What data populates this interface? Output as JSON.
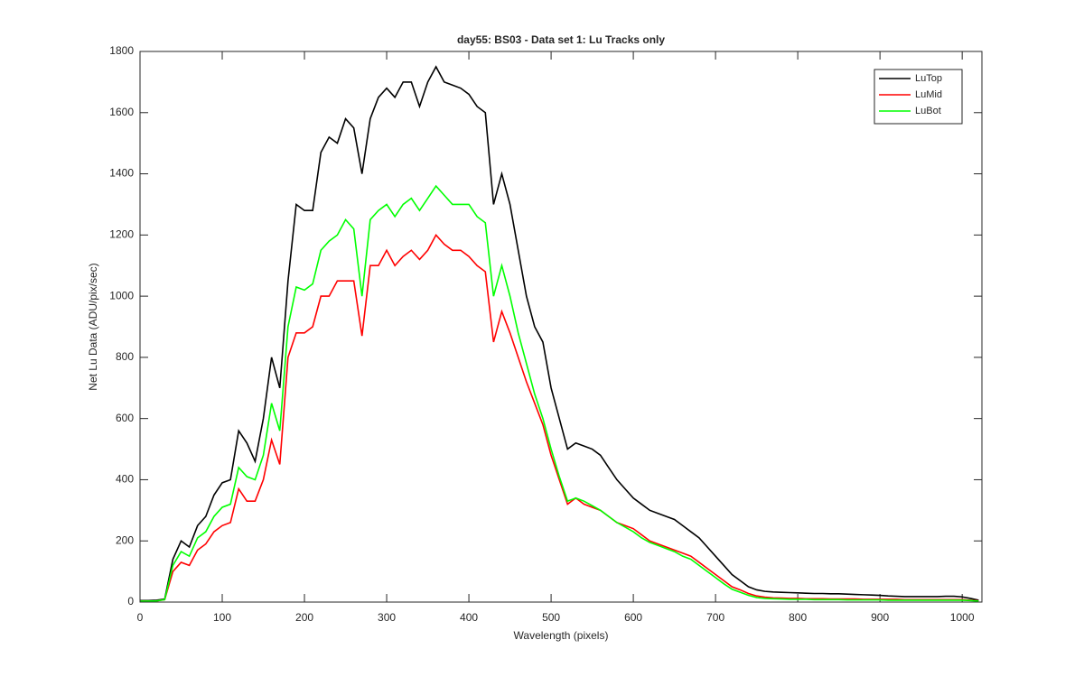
{
  "chart_data": {
    "type": "line",
    "title": "day55: BS03 - Data set 1: Lu Tracks only",
    "x_label": "Wavelength (pixels)",
    "y_label": "Net Lu Data (ADU/pix/sec)",
    "xlim": [
      0,
      1024
    ],
    "ylim": [
      0,
      1800
    ],
    "xticks": [
      0,
      100,
      200,
      300,
      400,
      500,
      600,
      700,
      800,
      900,
      1000
    ],
    "yticks": [
      0,
      200,
      400,
      600,
      800,
      1000,
      1200,
      1400,
      1600,
      1800
    ],
    "legend": "top-right",
    "x": [
      0,
      10,
      20,
      30,
      40,
      50,
      60,
      70,
      80,
      90,
      100,
      110,
      120,
      130,
      140,
      150,
      160,
      170,
      180,
      190,
      200,
      210,
      220,
      230,
      240,
      250,
      260,
      270,
      280,
      290,
      300,
      310,
      320,
      330,
      340,
      350,
      360,
      370,
      380,
      390,
      400,
      410,
      420,
      430,
      440,
      450,
      460,
      470,
      480,
      490,
      500,
      510,
      520,
      530,
      540,
      550,
      560,
      570,
      580,
      590,
      600,
      610,
      620,
      630,
      640,
      650,
      660,
      670,
      680,
      690,
      700,
      710,
      720,
      730,
      740,
      750,
      760,
      770,
      780,
      790,
      800,
      810,
      820,
      830,
      840,
      850,
      860,
      870,
      880,
      890,
      900,
      910,
      920,
      930,
      940,
      950,
      960,
      970,
      980,
      990,
      1000,
      1010,
      1020
    ],
    "series": [
      {
        "name": "LuTop",
        "color": "#000000",
        "values": [
          5,
          5,
          6,
          10,
          140,
          200,
          180,
          250,
          280,
          350,
          390,
          400,
          560,
          520,
          460,
          600,
          800,
          700,
          1050,
          1300,
          1280,
          1280,
          1470,
          1520,
          1500,
          1580,
          1550,
          1400,
          1580,
          1650,
          1680,
          1650,
          1700,
          1700,
          1620,
          1700,
          1750,
          1700,
          1690,
          1680,
          1660,
          1620,
          1600,
          1300,
          1400,
          1300,
          1150,
          1000,
          900,
          850,
          700,
          600,
          500,
          520,
          510,
          500,
          480,
          440,
          400,
          370,
          340,
          320,
          300,
          290,
          280,
          270,
          250,
          230,
          210,
          180,
          150,
          120,
          90,
          70,
          50,
          40,
          35,
          33,
          32,
          31,
          30,
          29,
          28,
          28,
          27,
          27,
          26,
          25,
          24,
          23,
          22,
          20,
          19,
          18,
          18,
          18,
          18,
          18,
          19,
          19,
          17,
          12,
          6
        ]
      },
      {
        "name": "LuMid",
        "color": "#ff0000",
        "values": [
          3,
          3,
          4,
          8,
          100,
          130,
          120,
          170,
          190,
          230,
          250,
          260,
          370,
          330,
          330,
          400,
          530,
          450,
          800,
          880,
          880,
          900,
          1000,
          1000,
          1050,
          1050,
          1050,
          870,
          1100,
          1100,
          1150,
          1100,
          1130,
          1150,
          1120,
          1150,
          1200,
          1170,
          1150,
          1150,
          1130,
          1100,
          1080,
          850,
          950,
          880,
          800,
          720,
          650,
          580,
          480,
          400,
          320,
          340,
          320,
          310,
          300,
          280,
          260,
          250,
          240,
          220,
          200,
          190,
          180,
          170,
          160,
          150,
          130,
          110,
          90,
          70,
          50,
          40,
          28,
          20,
          16,
          14,
          13,
          12,
          12,
          11,
          11,
          11,
          10,
          10,
          10,
          10,
          9,
          9,
          9,
          9,
          9,
          8,
          8,
          8,
          8,
          8,
          8,
          8,
          8,
          6,
          4
        ]
      },
      {
        "name": "LuBot",
        "color": "#00ff00",
        "values": [
          3,
          3,
          4,
          8,
          120,
          165,
          150,
          210,
          230,
          280,
          310,
          320,
          440,
          410,
          400,
          480,
          650,
          560,
          900,
          1030,
          1020,
          1040,
          1150,
          1180,
          1200,
          1250,
          1220,
          1000,
          1250,
          1280,
          1300,
          1260,
          1300,
          1320,
          1280,
          1320,
          1360,
          1330,
          1300,
          1300,
          1300,
          1260,
          1240,
          1000,
          1100,
          1000,
          880,
          780,
          680,
          600,
          500,
          410,
          330,
          340,
          330,
          315,
          300,
          280,
          260,
          245,
          230,
          210,
          195,
          185,
          175,
          165,
          150,
          140,
          120,
          100,
          80,
          60,
          42,
          32,
          22,
          15,
          12,
          11,
          10,
          9,
          9,
          9,
          8,
          8,
          8,
          8,
          7,
          7,
          7,
          7,
          7,
          6,
          6,
          6,
          6,
          6,
          6,
          6,
          6,
          6,
          6,
          5,
          3
        ]
      }
    ]
  }
}
